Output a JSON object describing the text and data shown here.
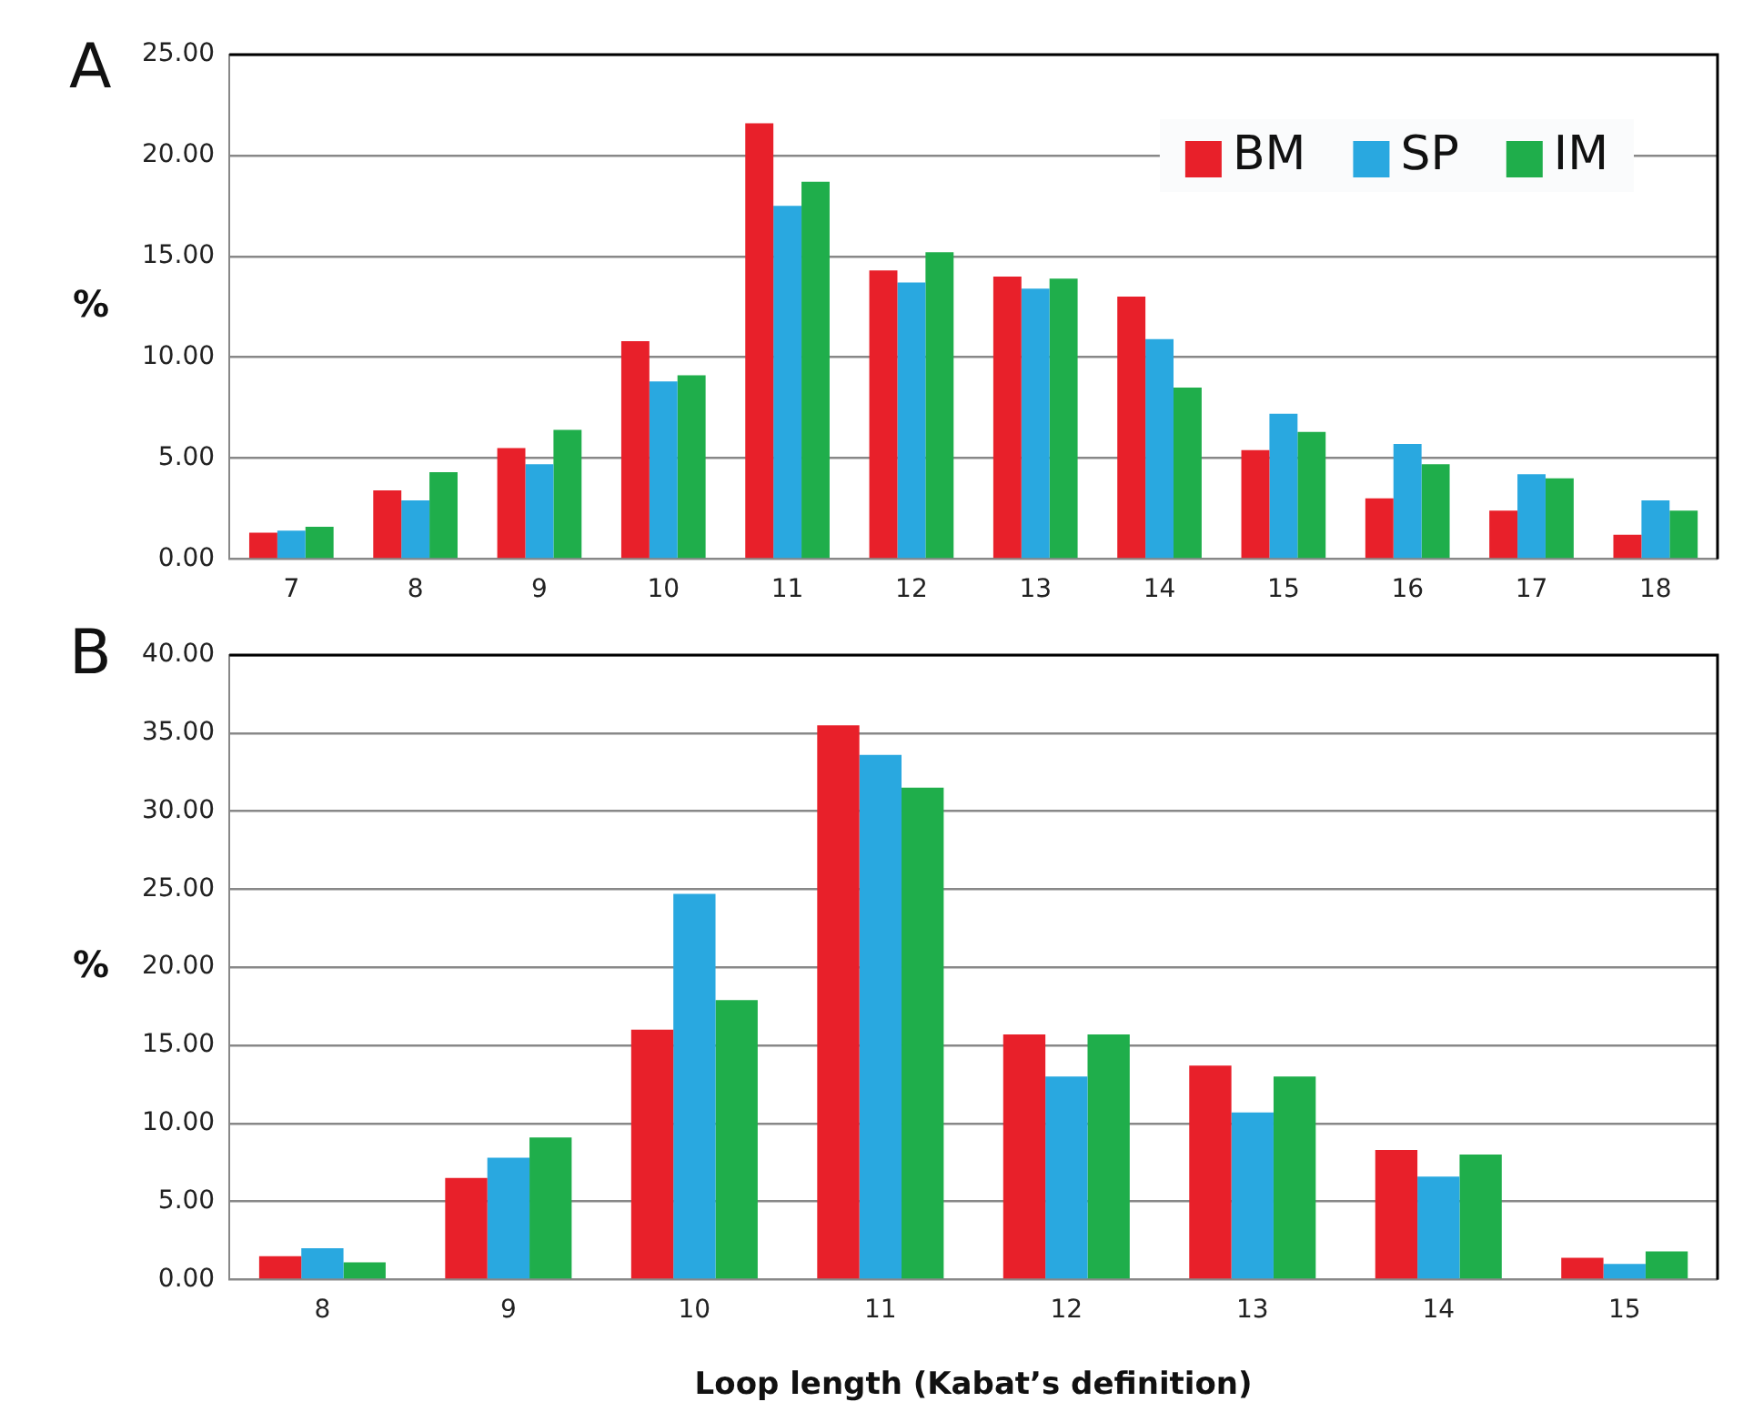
{
  "chart_data": [
    {
      "type": "bar",
      "annotations": [
        "A"
      ],
      "ylabel": "%",
      "categories": [
        "7",
        "8",
        "9",
        "10",
        "11",
        "12",
        "13",
        "14",
        "15",
        "16",
        "17",
        "18"
      ],
      "series": [
        {
          "name": "BM",
          "color": "#e8202a",
          "values": [
            1.3,
            3.4,
            5.5,
            10.8,
            21.6,
            14.3,
            14.0,
            13.0,
            5.4,
            3.0,
            2.4,
            1.2
          ]
        },
        {
          "name": "SP",
          "color": "#29a8e0",
          "values": [
            1.4,
            2.9,
            4.7,
            8.8,
            17.5,
            13.7,
            13.4,
            10.9,
            7.2,
            5.7,
            4.2,
            2.9
          ]
        },
        {
          "name": "IM",
          "color": "#1fae4b",
          "values": [
            1.6,
            4.3,
            6.4,
            9.1,
            18.7,
            15.2,
            13.9,
            8.5,
            6.3,
            4.7,
            4.0,
            2.4
          ]
        }
      ],
      "ylim": [
        0,
        25
      ],
      "yticks": [
        {
          "value": 0,
          "label": "0.00"
        },
        {
          "value": 5,
          "label": "5.00"
        },
        {
          "value": 10,
          "label": "10.00"
        },
        {
          "value": 15,
          "label": "15.00"
        },
        {
          "value": 20,
          "label": "20.00"
        },
        {
          "value": 25,
          "label": "25.00"
        }
      ],
      "grid": "y",
      "legend": "top right"
    },
    {
      "type": "bar",
      "annotations": [
        "B"
      ],
      "ylabel": "%",
      "xlabel": "Loop length (Kabat’s definition)",
      "categories": [
        "8",
        "9",
        "10",
        "11",
        "12",
        "13",
        "14",
        "15"
      ],
      "series": [
        {
          "color": "#e8202a",
          "values": [
            1.5,
            6.5,
            16.0,
            35.5,
            15.7,
            13.7,
            8.3,
            1.4
          ]
        },
        {
          "color": "#29a8e0",
          "values": [
            2.0,
            7.8,
            24.7,
            33.6,
            13.0,
            10.7,
            6.6,
            1.0
          ]
        },
        {
          "color": "#1fae4b",
          "values": [
            1.1,
            9.1,
            17.9,
            31.5,
            15.7,
            13.0,
            8.0,
            1.8
          ]
        }
      ],
      "ylim": [
        0,
        40
      ],
      "yticks": [
        {
          "value": 0,
          "label": "0.00"
        },
        {
          "value": 5,
          "label": "5.00"
        },
        {
          "value": 10,
          "label": "10.00"
        },
        {
          "value": 15,
          "label": "15.00"
        },
        {
          "value": 20,
          "label": "20.00"
        },
        {
          "value": 25,
          "label": "25.00"
        },
        {
          "value": 30,
          "label": "30.00"
        },
        {
          "value": 35,
          "label": "35.00"
        },
        {
          "value": 40,
          "label": "40.00"
        }
      ],
      "grid": "y"
    }
  ]
}
